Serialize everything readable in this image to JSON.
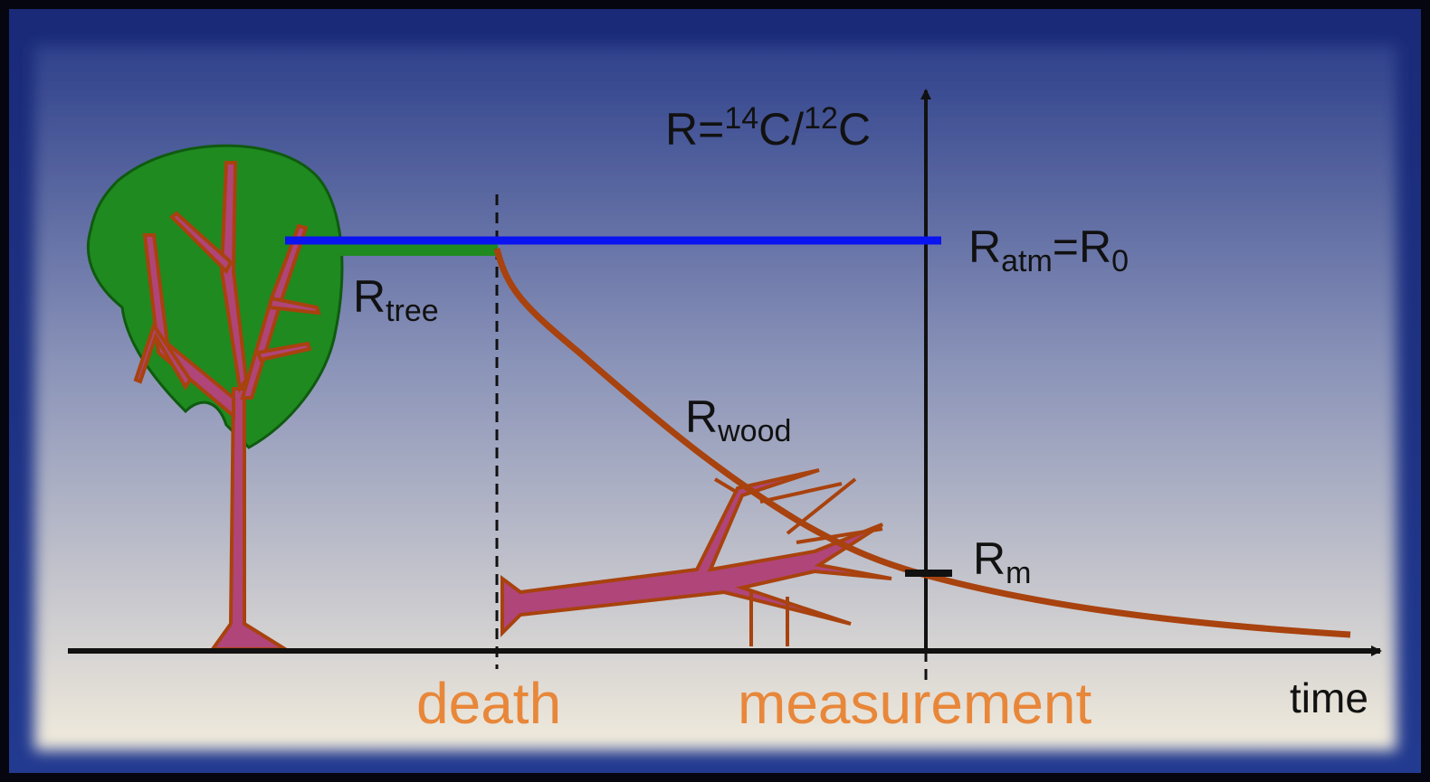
{
  "labels": {
    "ratio_axis": {
      "base": "R=",
      "sup1": "14",
      "mid": "C/",
      "sup2": "12",
      "end": "C"
    },
    "atmosphere": {
      "base": "R",
      "sub": "atm",
      "eq": "=R",
      "sub2": "0"
    },
    "tree": {
      "base": "R",
      "sub": "tree"
    },
    "wood": {
      "base": "R",
      "sub": "wood"
    },
    "measured": {
      "base": "R",
      "sub": "m"
    },
    "death": "death",
    "measurement": "measurement",
    "time": "time"
  }
}
